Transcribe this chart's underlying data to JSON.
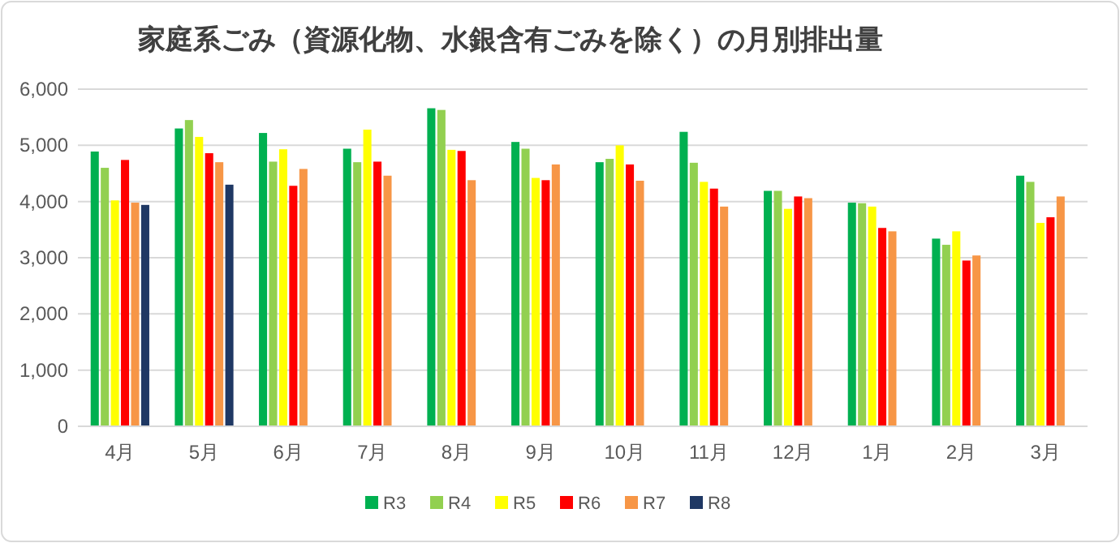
{
  "chart_data": {
    "type": "bar",
    "title": "家庭系ごみ（資源化物、水銀含有ごみを除く）の月別排出量",
    "categories": [
      "4月",
      "5月",
      "6月",
      "7月",
      "8月",
      "9月",
      "10月",
      "11月",
      "12月",
      "1月",
      "2月",
      "3月"
    ],
    "series": [
      {
        "name": "R3",
        "color": "#00b050",
        "values": [
          4890,
          5300,
          5220,
          4940,
          5660,
          5060,
          4700,
          5240,
          4190,
          3980,
          3340,
          4460
        ]
      },
      {
        "name": "R4",
        "color": "#92d050",
        "values": [
          4600,
          5450,
          4710,
          4700,
          5630,
          4940,
          4760,
          4690,
          4190,
          3970,
          3230,
          4350
        ]
      },
      {
        "name": "R5",
        "color": "#ffff00",
        "values": [
          4020,
          5150,
          4930,
          5280,
          4920,
          4420,
          5000,
          4350,
          3870,
          3910,
          3470,
          3620
        ]
      },
      {
        "name": "R6",
        "color": "#ff0000",
        "values": [
          4740,
          4860,
          4280,
          4710,
          4900,
          4380,
          4660,
          4230,
          4090,
          3530,
          2950,
          3720
        ]
      },
      {
        "name": "R7",
        "color": "#f79646",
        "values": [
          3980,
          4700,
          4580,
          4460,
          4380,
          4660,
          4370,
          3910,
          4060,
          3470,
          3040,
          4090
        ]
      },
      {
        "name": "R8",
        "color": "#1f3864",
        "values": [
          3940,
          4300,
          null,
          null,
          null,
          null,
          null,
          null,
          null,
          null,
          null,
          null
        ]
      }
    ],
    "ylim": [
      0,
      6000
    ],
    "yticks": [
      {
        "value": 0,
        "label": "0"
      },
      {
        "value": 1000,
        "label": "1,000"
      },
      {
        "value": 2000,
        "label": "2,000"
      },
      {
        "value": 3000,
        "label": "3,000"
      },
      {
        "value": 4000,
        "label": "4,000"
      },
      {
        "value": 5000,
        "label": "5,000"
      },
      {
        "value": 6000,
        "label": "6,000"
      }
    ],
    "grid": "y",
    "legend": "bottom"
  }
}
